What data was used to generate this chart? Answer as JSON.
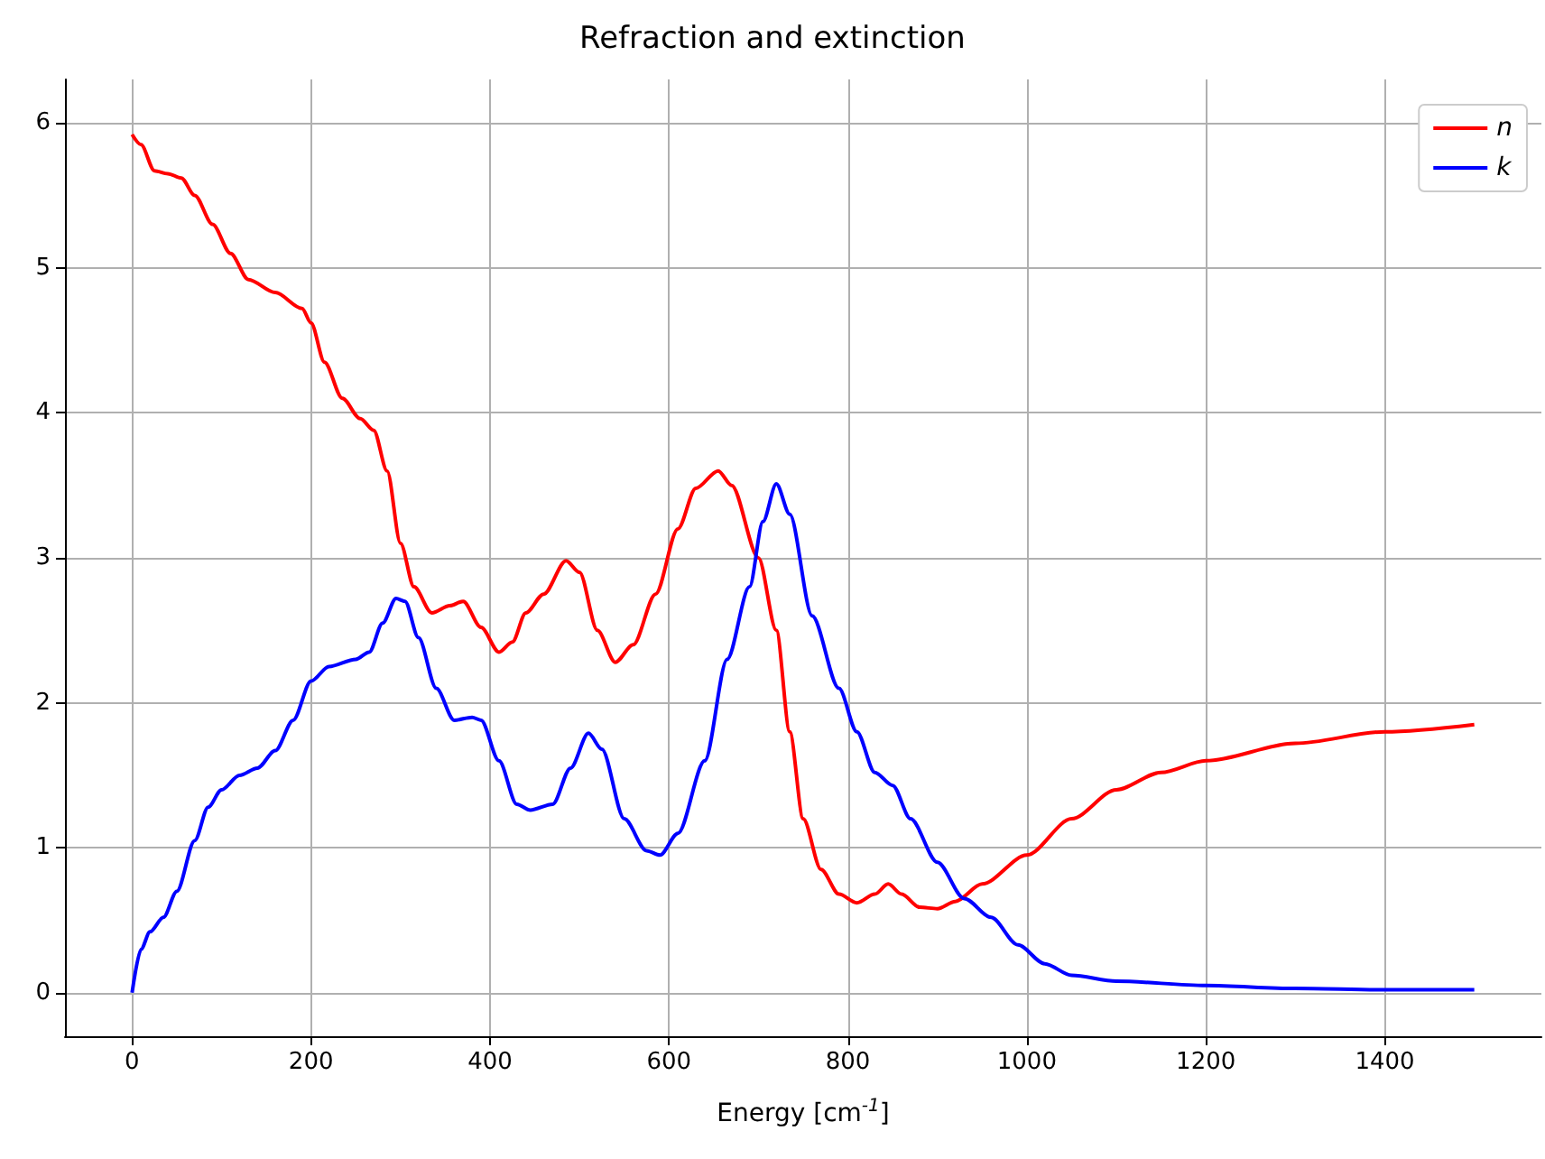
{
  "chart_data": {
    "type": "line",
    "title": "Refraction and extinction",
    "xlabel": "Energy [cm$^{-1}$]",
    "xlim": [
      -75,
      1575
    ],
    "xticks": [
      0,
      200,
      400,
      600,
      800,
      1000,
      1200,
      1400
    ],
    "ylim": [
      -0.3,
      6.3
    ],
    "yticks": [
      0,
      1,
      2,
      3,
      4,
      5,
      6
    ],
    "grid": true,
    "legend": "top right",
    "marker": "none",
    "line_style": "solid",
    "series": [
      {
        "name": "n",
        "color": "#ff0000",
        "x": [
          0,
          10,
          25,
          40,
          55,
          70,
          90,
          110,
          130,
          160,
          190,
          200,
          215,
          235,
          255,
          270,
          285,
          300,
          315,
          335,
          355,
          370,
          390,
          410,
          425,
          440,
          460,
          485,
          500,
          520,
          540,
          560,
          585,
          610,
          630,
          655,
          670,
          700,
          720,
          735,
          750,
          770,
          790,
          810,
          830,
          845,
          860,
          880,
          900,
          920,
          950,
          1000,
          1050,
          1100,
          1150,
          1200,
          1300,
          1400,
          1500
        ],
        "values": [
          5.92,
          5.85,
          5.67,
          5.65,
          5.62,
          5.5,
          5.3,
          5.1,
          4.92,
          4.83,
          4.72,
          4.62,
          4.35,
          4.1,
          3.96,
          3.88,
          3.6,
          3.1,
          2.8,
          2.62,
          2.67,
          2.7,
          2.52,
          2.35,
          2.42,
          2.62,
          2.75,
          2.98,
          2.9,
          2.5,
          2.28,
          2.4,
          2.75,
          3.2,
          3.48,
          3.6,
          3.5,
          3.0,
          2.5,
          1.8,
          1.2,
          0.85,
          0.68,
          0.62,
          0.68,
          0.75,
          0.68,
          0.59,
          0.58,
          0.63,
          0.75,
          0.95,
          1.2,
          1.4,
          1.52,
          1.6,
          1.72,
          1.8,
          1.85
        ]
      },
      {
        "name": "k",
        "color": "#0000ff",
        "x": [
          0,
          10,
          20,
          35,
          50,
          70,
          85,
          100,
          120,
          140,
          160,
          180,
          200,
          220,
          250,
          265,
          280,
          295,
          305,
          320,
          340,
          360,
          380,
          390,
          410,
          430,
          445,
          470,
          490,
          510,
          525,
          550,
          575,
          590,
          610,
          640,
          665,
          690,
          705,
          720,
          735,
          760,
          790,
          810,
          830,
          850,
          870,
          900,
          930,
          960,
          990,
          1020,
          1050,
          1100,
          1200,
          1300,
          1400,
          1500
        ],
        "values": [
          0,
          0.3,
          0.42,
          0.52,
          0.7,
          1.05,
          1.28,
          1.4,
          1.5,
          1.55,
          1.67,
          1.88,
          2.15,
          2.25,
          2.3,
          2.35,
          2.55,
          2.72,
          2.7,
          2.45,
          2.1,
          1.88,
          1.9,
          1.88,
          1.6,
          1.3,
          1.26,
          1.3,
          1.55,
          1.79,
          1.68,
          1.2,
          0.98,
          0.95,
          1.1,
          1.6,
          2.3,
          2.8,
          3.25,
          3.51,
          3.3,
          2.6,
          2.1,
          1.8,
          1.52,
          1.43,
          1.2,
          0.9,
          0.65,
          0.52,
          0.33,
          0.2,
          0.12,
          0.08,
          0.05,
          0.03,
          0.02,
          0.02
        ]
      }
    ]
  }
}
